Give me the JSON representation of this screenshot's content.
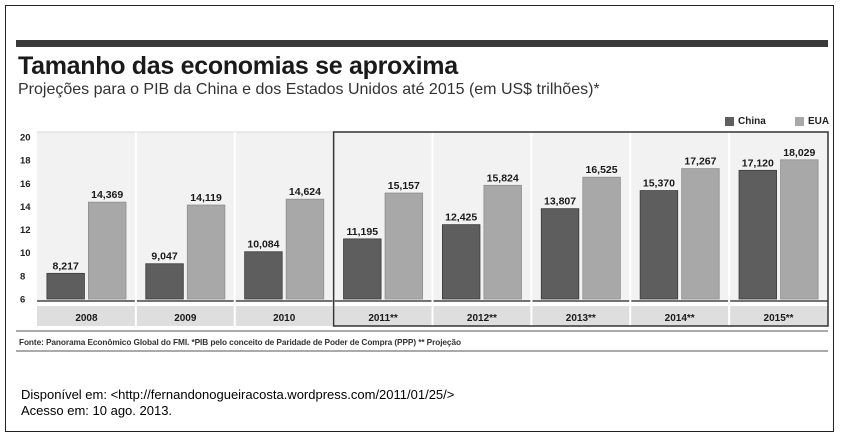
{
  "chart_data": {
    "type": "bar",
    "title": "Tamanho das economias se aproxima",
    "subtitle": "Projeções para o PIB da China e dos Estados Unidos até 2015 (em US$ trilhões)*",
    "categories": [
      "2008",
      "2009",
      "2010",
      "2011**",
      "2012**",
      "2013**",
      "2014**",
      "2015**"
    ],
    "series": [
      {
        "name": "China",
        "values": [
          8.217,
          9.047,
          10.084,
          11.195,
          12.425,
          13.807,
          15.37,
          17.12
        ],
        "labels": [
          "8,217",
          "9,047",
          "10,084",
          "11,195",
          "12,425",
          "13,807",
          "15,370",
          "17,120"
        ],
        "color": "#5e5e5e"
      },
      {
        "name": "EUA",
        "values": [
          14.369,
          14.119,
          14.624,
          15.157,
          15.824,
          16.525,
          17.267,
          18.029
        ],
        "labels": [
          "14,369",
          "14,119",
          "14,624",
          "15,157",
          "15,824",
          "16,525",
          "17,267",
          "18,029"
        ],
        "color": "#a8a8a8"
      }
    ],
    "yticks": [
      "20",
      "18",
      "16",
      "14",
      "12",
      "10",
      "8",
      "6"
    ],
    "ylim": [
      6,
      20
    ],
    "legend_position": "top-right",
    "grid": false,
    "source": "Fonte: Panorama Econômico Global do FMI. *PIB pelo conceito de Paridade de Poder de Compra (PPP) ** Projeção"
  },
  "credit": {
    "line1": "Disponível em: <http://fernandonogueiracosta.wordpress.com/2011/01/25/>",
    "line2": "Acesso em: 10 ago. 2013."
  }
}
